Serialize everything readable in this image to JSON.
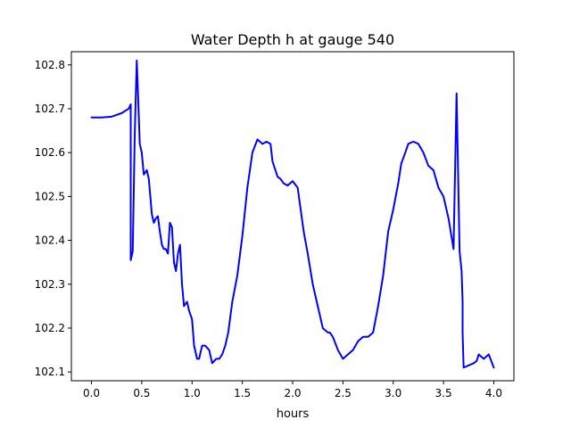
{
  "chart_data": {
    "type": "line",
    "title": "Water Depth h at gauge 540",
    "xlabel": "hours",
    "ylabel": "",
    "xlim": [
      -0.2,
      4.2
    ],
    "ylim": [
      102.08,
      102.83
    ],
    "xticks": [
      0.0,
      0.5,
      1.0,
      1.5,
      2.0,
      2.5,
      3.0,
      3.5,
      4.0
    ],
    "xtick_labels": [
      "0.0",
      "0.5",
      "1.0",
      "1.5",
      "2.0",
      "2.5",
      "3.0",
      "3.5",
      "4.0"
    ],
    "yticks": [
      102.1,
      102.2,
      102.3,
      102.4,
      102.5,
      102.6,
      102.7,
      102.8
    ],
    "ytick_labels": [
      "102.1",
      "102.2",
      "102.3",
      "102.4",
      "102.5",
      "102.6",
      "102.7",
      "102.8"
    ],
    "grid": false,
    "legend": "none",
    "series": [
      {
        "color": "#0000ff",
        "x": [
          0.0,
          0.1,
          0.2,
          0.3,
          0.37,
          0.39,
          0.39,
          0.41,
          0.43,
          0.45,
          0.46,
          0.48,
          0.5,
          0.52,
          0.55,
          0.57,
          0.6,
          0.62,
          0.64,
          0.66,
          0.68,
          0.7,
          0.72,
          0.74,
          0.76,
          0.78,
          0.8,
          0.82,
          0.84,
          0.86,
          0.88,
          0.9,
          0.92,
          0.95,
          0.97,
          1.0,
          1.02,
          1.05,
          1.07,
          1.1,
          1.13,
          1.17,
          1.2,
          1.24,
          1.27,
          1.3,
          1.33,
          1.36,
          1.4,
          1.45,
          1.5,
          1.55,
          1.6,
          1.65,
          1.7,
          1.74,
          1.78,
          1.8,
          1.85,
          1.88,
          1.91,
          1.95,
          2.0,
          2.05,
          2.08,
          2.11,
          2.15,
          2.2,
          2.25,
          2.3,
          2.35,
          2.37,
          2.4,
          2.45,
          2.5,
          2.55,
          2.6,
          2.65,
          2.7,
          2.75,
          2.8,
          2.85,
          2.9,
          2.95,
          3.0,
          3.05,
          3.08,
          3.12,
          3.15,
          3.2,
          3.25,
          3.3,
          3.35,
          3.4,
          3.45,
          3.5,
          3.55,
          3.6,
          3.63,
          3.66,
          3.68,
          3.69,
          3.69,
          3.7,
          3.75,
          3.8,
          3.83,
          3.85,
          3.9,
          3.95,
          4.0
        ],
        "values": [
          102.68,
          102.68,
          102.682,
          102.69,
          102.7,
          102.71,
          102.355,
          102.375,
          102.64,
          102.81,
          102.75,
          102.62,
          102.6,
          102.55,
          102.56,
          102.54,
          102.46,
          102.44,
          102.45,
          102.455,
          102.42,
          102.39,
          102.38,
          102.38,
          102.37,
          102.44,
          102.43,
          102.35,
          102.33,
          102.37,
          102.39,
          102.3,
          102.25,
          102.26,
          102.24,
          102.22,
          102.16,
          102.13,
          102.13,
          102.16,
          102.16,
          102.15,
          102.12,
          102.13,
          102.13,
          102.14,
          102.16,
          102.19,
          102.26,
          102.32,
          102.41,
          102.52,
          102.6,
          102.63,
          102.62,
          102.625,
          102.62,
          102.58,
          102.545,
          102.54,
          102.53,
          102.525,
          102.535,
          102.52,
          102.47,
          102.42,
          102.37,
          102.3,
          102.25,
          102.2,
          102.19,
          102.19,
          102.18,
          102.15,
          102.13,
          102.14,
          102.15,
          102.17,
          102.18,
          102.18,
          102.19,
          102.25,
          102.32,
          102.42,
          102.47,
          102.53,
          102.575,
          102.6,
          102.62,
          102.625,
          102.62,
          102.6,
          102.57,
          102.56,
          102.52,
          102.5,
          102.45,
          102.38,
          102.735,
          102.375,
          102.33,
          102.26,
          102.19,
          102.11,
          102.115,
          102.12,
          102.125,
          102.14,
          102.13,
          102.14,
          102.11
        ]
      }
    ]
  }
}
